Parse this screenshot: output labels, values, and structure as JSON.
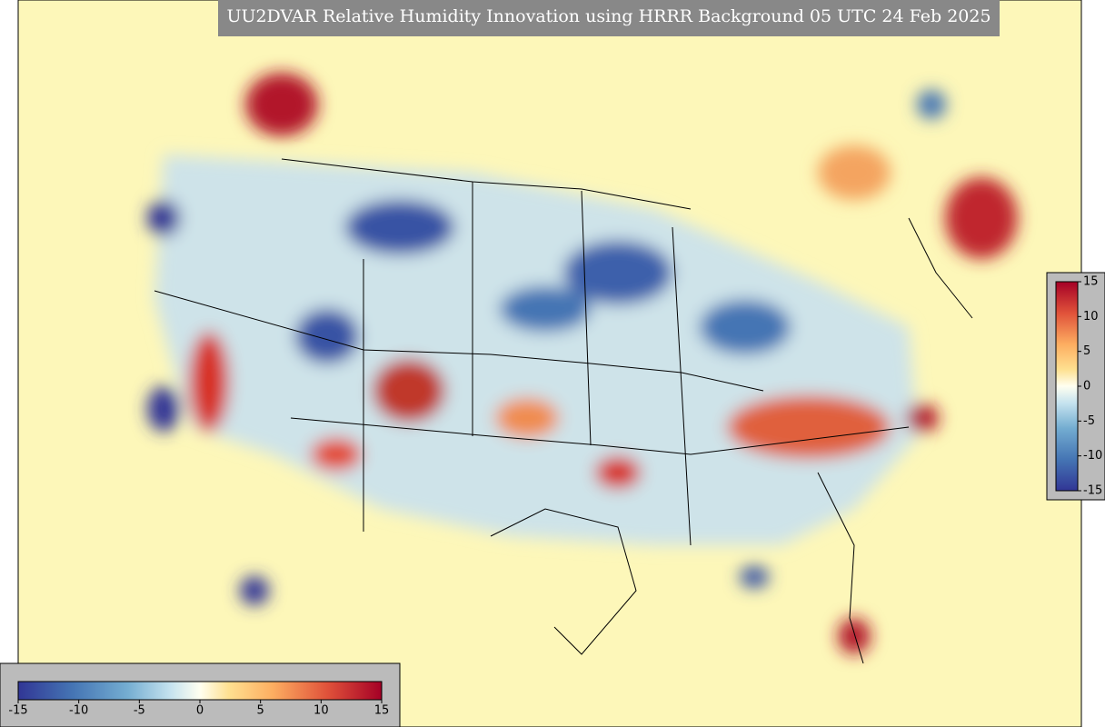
{
  "title": "UU2DVAR Relative Humidity Innovation using HRRR Background 05 UTC 24 Feb 2025",
  "vertical_colorbar": {
    "range": [
      -15,
      15
    ],
    "ticks": [
      -15,
      -10,
      -5,
      0,
      5,
      10,
      15
    ]
  },
  "horizontal_colorbar": {
    "range": [
      -15,
      15
    ],
    "ticks": [
      -15,
      -10,
      -5,
      0,
      5,
      10,
      15
    ]
  }
}
